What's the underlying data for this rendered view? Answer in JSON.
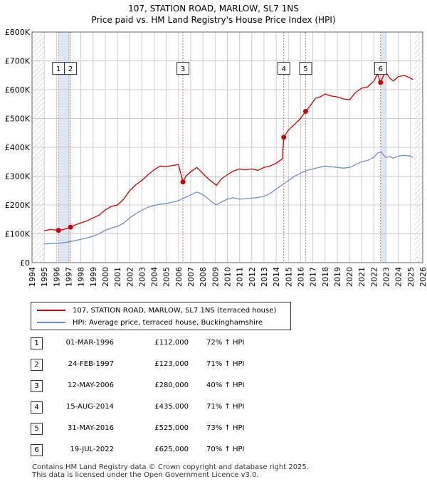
{
  "colors": {
    "price": "#cc0000",
    "hpi": "#6b8fc9",
    "band": "#dde6f3",
    "grid": "#cccccc",
    "vline": "#e07070"
  },
  "chart_data": {
    "type": "line",
    "title": "107, STATION ROAD, MARLOW, SL7 1NS",
    "subtitle": "Price paid vs. HM Land Registry's House Price Index (HPI)",
    "xlabel": "",
    "ylabel": "",
    "xlim": [
      1994,
      2026
    ],
    "ylim": [
      0,
      800000
    ],
    "x_ticks": [
      "1994",
      "1995",
      "1996",
      "1997",
      "1998",
      "1999",
      "2000",
      "2001",
      "2002",
      "2003",
      "2004",
      "2005",
      "2006",
      "2007",
      "2008",
      "2009",
      "2010",
      "2011",
      "2012",
      "2013",
      "2014",
      "2015",
      "2016",
      "2017",
      "2018",
      "2019",
      "2020",
      "2021",
      "2022",
      "2023",
      "2024",
      "2025",
      "2026"
    ],
    "y_ticks": [
      {
        "value": 0,
        "label": "£0"
      },
      {
        "value": 100000,
        "label": "£100K"
      },
      {
        "value": 200000,
        "label": "£200K"
      },
      {
        "value": 300000,
        "label": "£300K"
      },
      {
        "value": 400000,
        "label": "£400K"
      },
      {
        "value": 500000,
        "label": "£500K"
      },
      {
        "value": 600000,
        "label": "£600K"
      },
      {
        "value": 700000,
        "label": "£700K"
      },
      {
        "value": 800000,
        "label": "£800K"
      }
    ],
    "hatched_ranges": [
      [
        1994,
        1995
      ],
      [
        2025.3,
        2026
      ]
    ],
    "shaded_ranges": [
      [
        1996.17,
        1997.15
      ],
      [
        2022.55,
        2023.0
      ]
    ],
    "series": [
      {
        "name": "107, STATION ROAD, MARLOW, SL7 1NS (terraced house)",
        "color": "#cc0000",
        "x": [
          1995.0,
          1995.5,
          1996.17,
          1996.6,
          1997.15,
          1997.5,
          1998,
          1998.5,
          1999,
          1999.5,
          2000,
          2000.5,
          2001,
          2001.5,
          2002,
          2002.5,
          2003,
          2003.5,
          2004,
          2004.5,
          2005,
          2005.5,
          2006.0,
          2006.3,
          2006.36,
          2006.6,
          2007,
          2007.5,
          2007.8,
          2008.2,
          2008.6,
          2009.1,
          2009.5,
          2010,
          2010.5,
          2011,
          2011.5,
          2012,
          2012.5,
          2013,
          2013.5,
          2014.0,
          2014.5,
          2014.62,
          2015,
          2015.5,
          2016.0,
          2016.41,
          2016.8,
          2017.2,
          2017.6,
          2018,
          2018.5,
          2019,
          2019.5,
          2020,
          2020.5,
          2021,
          2021.5,
          2022.0,
          2022.3,
          2022.55,
          2022.8,
          2023.0,
          2023.3,
          2023.6,
          2024,
          2024.5,
          2025,
          2025.2
        ],
        "values": [
          110000,
          115000,
          112000,
          115000,
          123000,
          130000,
          138000,
          145000,
          155000,
          165000,
          183000,
          195000,
          200000,
          220000,
          250000,
          270000,
          285000,
          305000,
          322000,
          335000,
          333000,
          337000,
          340000,
          290000,
          280000,
          300000,
          315000,
          330000,
          318000,
          300000,
          285000,
          268000,
          290000,
          305000,
          318000,
          325000,
          322000,
          325000,
          320000,
          330000,
          335000,
          345000,
          360000,
          435000,
          460000,
          480000,
          500000,
          525000,
          545000,
          570000,
          575000,
          585000,
          578000,
          575000,
          568000,
          565000,
          590000,
          605000,
          610000,
          630000,
          655000,
          625000,
          650000,
          660000,
          640000,
          630000,
          645000,
          650000,
          640000,
          635000
        ]
      },
      {
        "name": "HPI: Average price, terraced house, Buckinghamshire",
        "color": "#6b8fc9",
        "x": [
          1995.0,
          1995.5,
          1996,
          1996.5,
          1997,
          1997.5,
          1998,
          1998.5,
          1999,
          1999.5,
          2000,
          2000.5,
          2001,
          2001.5,
          2002,
          2002.5,
          2003,
          2003.5,
          2004,
          2004.5,
          2005,
          2005.5,
          2006,
          2006.5,
          2007,
          2007.5,
          2007.8,
          2008.2,
          2008.6,
          2009.1,
          2009.5,
          2010,
          2010.5,
          2011,
          2011.5,
          2012,
          2012.5,
          2013,
          2013.5,
          2014,
          2014.5,
          2015,
          2015.5,
          2016,
          2016.5,
          2017,
          2017.5,
          2018,
          2018.5,
          2019,
          2019.5,
          2020,
          2020.5,
          2021,
          2021.5,
          2022,
          2022.3,
          2022.6,
          2022.8,
          2023,
          2023.3,
          2023.6,
          2024,
          2024.5,
          2025,
          2025.2
        ],
        "values": [
          65000,
          66000,
          67000,
          69000,
          72000,
          76000,
          81000,
          86000,
          92000,
          100000,
          112000,
          120000,
          126000,
          137000,
          155000,
          170000,
          182000,
          192000,
          198000,
          203000,
          205000,
          210000,
          215000,
          225000,
          235000,
          245000,
          240000,
          230000,
          215000,
          200000,
          210000,
          220000,
          225000,
          220000,
          222000,
          224000,
          226000,
          230000,
          240000,
          255000,
          270000,
          285000,
          300000,
          310000,
          320000,
          325000,
          330000,
          335000,
          333000,
          330000,
          328000,
          330000,
          340000,
          350000,
          355000,
          365000,
          380000,
          385000,
          372000,
          365000,
          368000,
          362000,
          370000,
          372000,
          370000,
          365000
        ]
      }
    ],
    "sales": [
      {
        "n": "1",
        "x": 1996.17,
        "value": 112000
      },
      {
        "n": "2",
        "x": 1997.15,
        "value": 123000
      },
      {
        "n": "3",
        "x": 2006.36,
        "value": 280000
      },
      {
        "n": "4",
        "x": 2014.62,
        "value": 435000
      },
      {
        "n": "5",
        "x": 2016.41,
        "value": 525000
      },
      {
        "n": "6",
        "x": 2022.55,
        "value": 625000
      }
    ]
  },
  "legend": {
    "price_label": "107, STATION ROAD, MARLOW, SL7 1NS (terraced house)",
    "hpi_label": "HPI: Average price, terraced house, Buckinghamshire"
  },
  "transactions": [
    {
      "n": "1",
      "date": "01-MAR-1996",
      "price": "£112,000",
      "hpi": "72% ↑ HPI"
    },
    {
      "n": "2",
      "date": "24-FEB-1997",
      "price": "£123,000",
      "hpi": "71% ↑ HPI"
    },
    {
      "n": "3",
      "date": "12-MAY-2006",
      "price": "£280,000",
      "hpi": "40% ↑ HPI"
    },
    {
      "n": "4",
      "date": "15-AUG-2014",
      "price": "£435,000",
      "hpi": "71% ↑ HPI"
    },
    {
      "n": "5",
      "date": "31-MAY-2016",
      "price": "£525,000",
      "hpi": "73% ↑ HPI"
    },
    {
      "n": "6",
      "date": "19-JUL-2022",
      "price": "£625,000",
      "hpi": "70% ↑ HPI"
    }
  ],
  "footer": {
    "line1": "Contains HM Land Registry data © Crown copyright and database right 2025.",
    "line2": "This data is licensed under the Open Government Licence v3.0."
  }
}
